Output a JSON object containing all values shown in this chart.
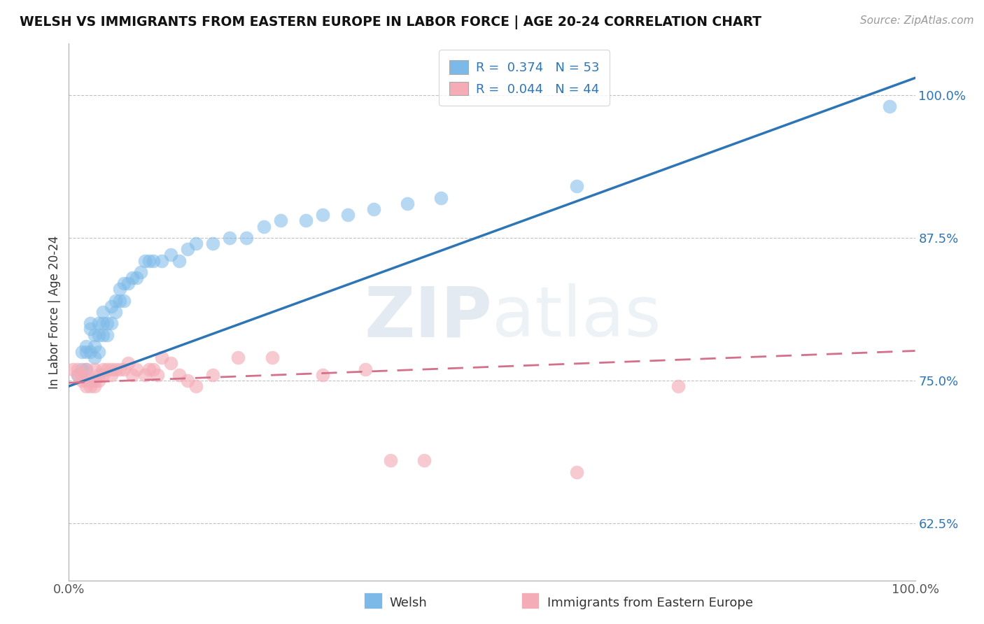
{
  "title": "WELSH VS IMMIGRANTS FROM EASTERN EUROPE IN LABOR FORCE | AGE 20-24 CORRELATION CHART",
  "source": "Source: ZipAtlas.com",
  "ylabel": "In Labor Force | Age 20-24",
  "xlim": [
    0.0,
    1.0
  ],
  "ylim": [
    0.575,
    1.045
  ],
  "x_ticks": [
    0.0,
    1.0
  ],
  "x_tick_labels": [
    "0.0%",
    "100.0%"
  ],
  "y_ticks": [
    0.625,
    0.75,
    0.875,
    1.0
  ],
  "y_tick_labels": [
    "62.5%",
    "75.0%",
    "87.5%",
    "100.0%"
  ],
  "blue_color": "#7CB9E8",
  "pink_color": "#F4ACB7",
  "blue_line_color": "#2E75B6",
  "pink_line_color": "#D4708A",
  "legend_line1": "R =  0.374   N = 53",
  "legend_line2": "R =  0.044   N = 44",
  "watermark_zip": "ZIP",
  "watermark_atlas": "atlas",
  "background_color": "#FFFFFF",
  "grid_color": "#BBBBBB",
  "blue_R": 0.374,
  "pink_R": 0.044,
  "blue_intercept": 0.745,
  "blue_slope": 0.27,
  "pink_intercept": 0.748,
  "pink_slope": 0.028,
  "welsh_x": [
    0.01,
    0.015,
    0.015,
    0.02,
    0.02,
    0.02,
    0.025,
    0.025,
    0.025,
    0.03,
    0.03,
    0.03,
    0.035,
    0.035,
    0.035,
    0.04,
    0.04,
    0.04,
    0.045,
    0.045,
    0.05,
    0.05,
    0.055,
    0.055,
    0.06,
    0.06,
    0.065,
    0.065,
    0.07,
    0.075,
    0.08,
    0.085,
    0.09,
    0.095,
    0.1,
    0.11,
    0.12,
    0.13,
    0.14,
    0.15,
    0.17,
    0.19,
    0.21,
    0.23,
    0.25,
    0.28,
    0.3,
    0.33,
    0.36,
    0.4,
    0.44,
    0.6,
    0.97
  ],
  "welsh_y": [
    0.755,
    0.76,
    0.775,
    0.76,
    0.78,
    0.775,
    0.775,
    0.795,
    0.8,
    0.77,
    0.78,
    0.79,
    0.775,
    0.79,
    0.8,
    0.79,
    0.8,
    0.81,
    0.79,
    0.8,
    0.8,
    0.815,
    0.81,
    0.82,
    0.82,
    0.83,
    0.82,
    0.835,
    0.835,
    0.84,
    0.84,
    0.845,
    0.855,
    0.855,
    0.855,
    0.855,
    0.86,
    0.855,
    0.865,
    0.87,
    0.87,
    0.875,
    0.875,
    0.885,
    0.89,
    0.89,
    0.895,
    0.895,
    0.9,
    0.905,
    0.91,
    0.92,
    0.99
  ],
  "immigrant_x": [
    0.005,
    0.01,
    0.01,
    0.015,
    0.015,
    0.02,
    0.02,
    0.02,
    0.025,
    0.025,
    0.03,
    0.03,
    0.03,
    0.035,
    0.035,
    0.04,
    0.04,
    0.045,
    0.05,
    0.05,
    0.055,
    0.06,
    0.065,
    0.07,
    0.075,
    0.08,
    0.09,
    0.095,
    0.1,
    0.105,
    0.11,
    0.12,
    0.13,
    0.14,
    0.15,
    0.17,
    0.2,
    0.24,
    0.3,
    0.35,
    0.38,
    0.42,
    0.6,
    0.72
  ],
  "immigrant_y": [
    0.76,
    0.76,
    0.755,
    0.755,
    0.75,
    0.745,
    0.75,
    0.76,
    0.75,
    0.745,
    0.745,
    0.75,
    0.76,
    0.75,
    0.755,
    0.76,
    0.755,
    0.76,
    0.76,
    0.755,
    0.76,
    0.76,
    0.76,
    0.765,
    0.755,
    0.76,
    0.755,
    0.76,
    0.76,
    0.755,
    0.77,
    0.765,
    0.755,
    0.75,
    0.745,
    0.755,
    0.77,
    0.77,
    0.755,
    0.76,
    0.68,
    0.68,
    0.67,
    0.745
  ]
}
